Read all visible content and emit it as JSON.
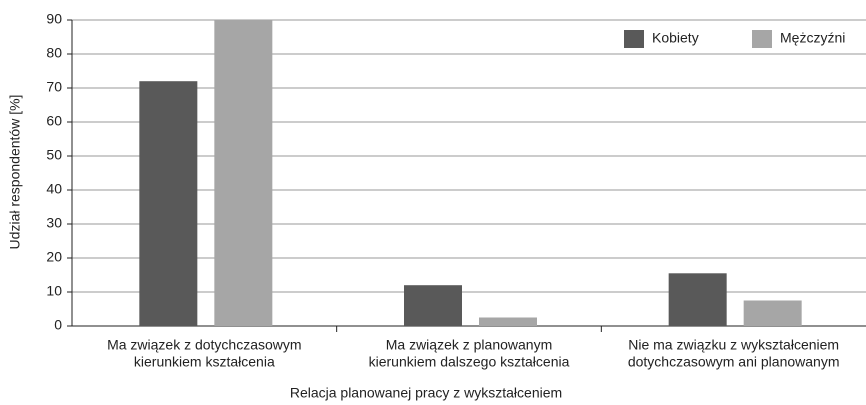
{
  "chart_data": {
    "type": "bar",
    "x_label": "Relacja planowanej pracy z wykształceniem",
    "y_label": "Udział respondentów [%]",
    "categories": [
      [
        "Ma związek z dotychczasowym",
        "kierunkiem kształcenia"
      ],
      [
        "Ma związek z planowanym",
        "kierunkiem dalszego kształcenia"
      ],
      [
        "Nie ma związku z wykształceniem",
        "dotychczasowym ani planowanym"
      ]
    ],
    "series": [
      {
        "name": "Kobiety",
        "color": "#595959",
        "values": [
          72,
          12,
          15.5
        ]
      },
      {
        "name": "Mężczyźni",
        "color": "#a6a6a6",
        "values": [
          90,
          2.5,
          7.5
        ]
      }
    ],
    "ylim": [
      0,
      90
    ],
    "yticks": [
      0,
      10,
      20,
      30,
      40,
      50,
      60,
      70,
      80,
      90
    ],
    "grid": true,
    "legend": "top-right"
  }
}
